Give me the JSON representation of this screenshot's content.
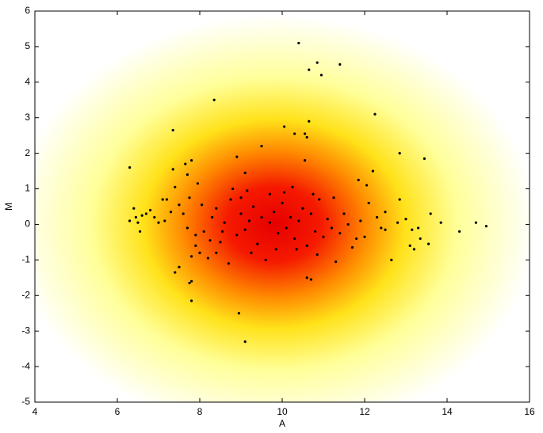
{
  "chart_data": {
    "type": "scatter",
    "x_label": "A",
    "y_label": "M",
    "color": "#000000",
    "xlim": [
      4,
      16
    ],
    "ylim": [
      -5,
      6
    ],
    "xticks": [
      4,
      6,
      8,
      10,
      12,
      14,
      16
    ],
    "yticks": [
      -5,
      -4,
      -3,
      -2,
      -1,
      0,
      1,
      2,
      3,
      4,
      5,
      6
    ],
    "x": [
      10.4,
      10.85,
      10.65,
      10.95,
      11.4,
      8.35,
      12.25,
      10.65,
      7.35,
      10.05,
      10.3,
      10.55,
      10.6,
      9.5,
      12.85,
      13.45,
      8.9,
      7.8,
      6.3,
      7.35,
      7.65,
      7.7,
      10.55,
      12.2,
      11.85,
      12.05,
      8.8,
      9.1,
      7.4,
      7.95,
      7.8,
      8.95,
      9.1,
      7.8,
      7.75,
      7.4,
      7.5,
      10.6,
      10.7,
      14.3,
      14.7,
      14.95,
      13.85,
      13.6,
      13.55,
      13.1,
      13.2,
      13.15,
      13.3,
      13.35,
      12.65,
      12.85,
      11.3,
      11.7,
      12.0,
      12.5,
      6.3,
      6.4,
      6.45,
      6.5,
      6.55,
      6.6,
      6.7,
      6.8,
      6.9,
      7.0,
      7.1,
      7.2,
      7.15,
      7.3,
      7.5,
      7.6,
      7.7,
      7.75,
      7.8,
      7.9,
      8.0,
      8.1,
      8.2,
      8.3,
      8.4,
      8.5,
      8.6,
      8.7,
      8.75,
      8.9,
      9.0,
      9.1,
      9.2,
      9.3,
      9.4,
      9.5,
      9.6,
      9.7,
      9.8,
      9.9,
      10.0,
      10.05,
      10.1,
      10.2,
      10.3,
      10.4,
      10.5,
      10.6,
      10.7,
      10.8,
      10.9,
      11.0,
      11.1,
      11.2,
      11.4,
      11.5,
      11.6,
      11.8,
      11.9,
      12.1,
      12.3,
      12.4,
      12.5,
      9.0,
      8.55,
      9.85,
      10.35,
      8.25,
      9.25,
      10.85,
      9.15,
      10.25,
      8.05,
      11.25,
      9.7,
      10.75,
      7.9,
      8.4,
      12.8,
      13.0
    ],
    "values": [
      5.1,
      4.55,
      4.35,
      4.2,
      4.5,
      3.5,
      3.1,
      2.9,
      2.65,
      2.75,
      2.55,
      2.55,
      2.45,
      2.2,
      2.0,
      1.85,
      1.9,
      1.8,
      1.6,
      1.55,
      1.7,
      1.4,
      1.8,
      1.5,
      1.25,
      1.1,
      1.0,
      1.45,
      1.05,
      1.15,
      -2.15,
      -2.5,
      -3.3,
      -1.6,
      -1.65,
      -1.35,
      -1.2,
      -1.5,
      -1.55,
      -0.2,
      0.05,
      -0.05,
      0.05,
      0.3,
      -0.55,
      -0.6,
      -0.7,
      -0.15,
      -0.1,
      -0.4,
      -1.0,
      0.7,
      -1.05,
      -0.65,
      -0.35,
      -0.15,
      0.1,
      0.45,
      0.2,
      0.05,
      -0.2,
      0.25,
      0.3,
      0.4,
      0.2,
      0.05,
      0.7,
      0.7,
      0.1,
      0.35,
      0.55,
      0.3,
      -0.1,
      0.75,
      -0.9,
      -0.6,
      -0.8,
      -0.2,
      -0.95,
      0.2,
      0.45,
      -0.5,
      0.05,
      -1.1,
      0.7,
      -0.3,
      0.3,
      -0.15,
      0.1,
      0.5,
      -0.55,
      0.2,
      -1.0,
      0.05,
      0.35,
      -0.25,
      0.6,
      0.9,
      -0.1,
      0.2,
      -0.4,
      0.1,
      0.45,
      -0.6,
      0.3,
      -0.2,
      0.7,
      -0.35,
      0.15,
      -0.1,
      -0.25,
      0.3,
      0.0,
      -0.4,
      0.1,
      0.6,
      0.2,
      -0.1,
      0.35,
      0.75,
      -0.2,
      -0.7,
      -0.7,
      -0.45,
      -0.8,
      -0.85,
      0.95,
      1.05,
      0.55,
      0.75,
      0.85,
      0.85,
      -0.3,
      -0.8,
      0.05,
      0.15
    ]
  }
}
